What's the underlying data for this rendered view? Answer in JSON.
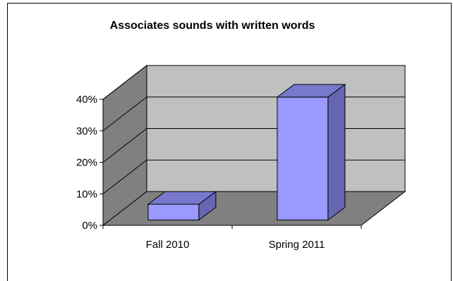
{
  "chart_data": {
    "type": "bar",
    "title": "Associates sounds with written words",
    "categories": [
      "Fall 2010",
      "Spring 2011"
    ],
    "values": [
      5,
      39
    ],
    "value_unit": "%",
    "ylim": [
      0,
      40
    ],
    "yticks": [
      "0%",
      "10%",
      "20%",
      "30%",
      "40%"
    ],
    "xlabel": "",
    "ylabel": "",
    "grid": true,
    "legend": "none",
    "colors": {
      "bar_front": "#9999ff",
      "bar_side": "#6666b3",
      "bar_top": "#7777cc",
      "back_wall": "#c0c0c0",
      "side_wall": "#808080",
      "floor": "#808080"
    }
  }
}
